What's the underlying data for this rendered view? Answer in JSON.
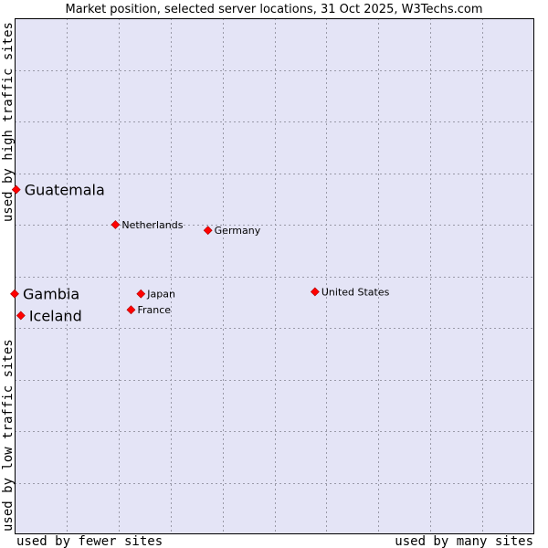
{
  "chart_data": {
    "type": "scatter",
    "title": "Market position, selected server locations, 31 Oct 2025, W3Techs.com",
    "x_axis": {
      "low_label": "used by fewer sites",
      "high_label": "used by many sites",
      "range": [
        0,
        100
      ]
    },
    "y_axis": {
      "low_label": "used by low traffic sites",
      "high_label": "used by high traffic sites",
      "range": [
        0,
        100
      ]
    },
    "grid": true,
    "points": [
      {
        "name": "Guatemala",
        "x": 0.3,
        "y": 66.8,
        "highlight": true
      },
      {
        "name": "Netherlands",
        "x": 19.4,
        "y": 60.0,
        "highlight": false
      },
      {
        "name": "Germany",
        "x": 37.2,
        "y": 58.9,
        "highlight": false
      },
      {
        "name": "United States",
        "x": 57.8,
        "y": 47.0,
        "highlight": false
      },
      {
        "name": "Gambia",
        "x": 0.0,
        "y": 46.6,
        "highlight": true
      },
      {
        "name": "Japan",
        "x": 24.3,
        "y": 46.6,
        "highlight": false
      },
      {
        "name": "Iceland",
        "x": 1.2,
        "y": 42.4,
        "highlight": true
      },
      {
        "name": "France",
        "x": 22.4,
        "y": 43.5,
        "highlight": false
      }
    ]
  },
  "colors": {
    "plot_background": "#e4e4f6",
    "grid": "#9a9aa8",
    "border": "#000000",
    "marker": "#ff0000",
    "marker_edge": "#aa0000"
  }
}
